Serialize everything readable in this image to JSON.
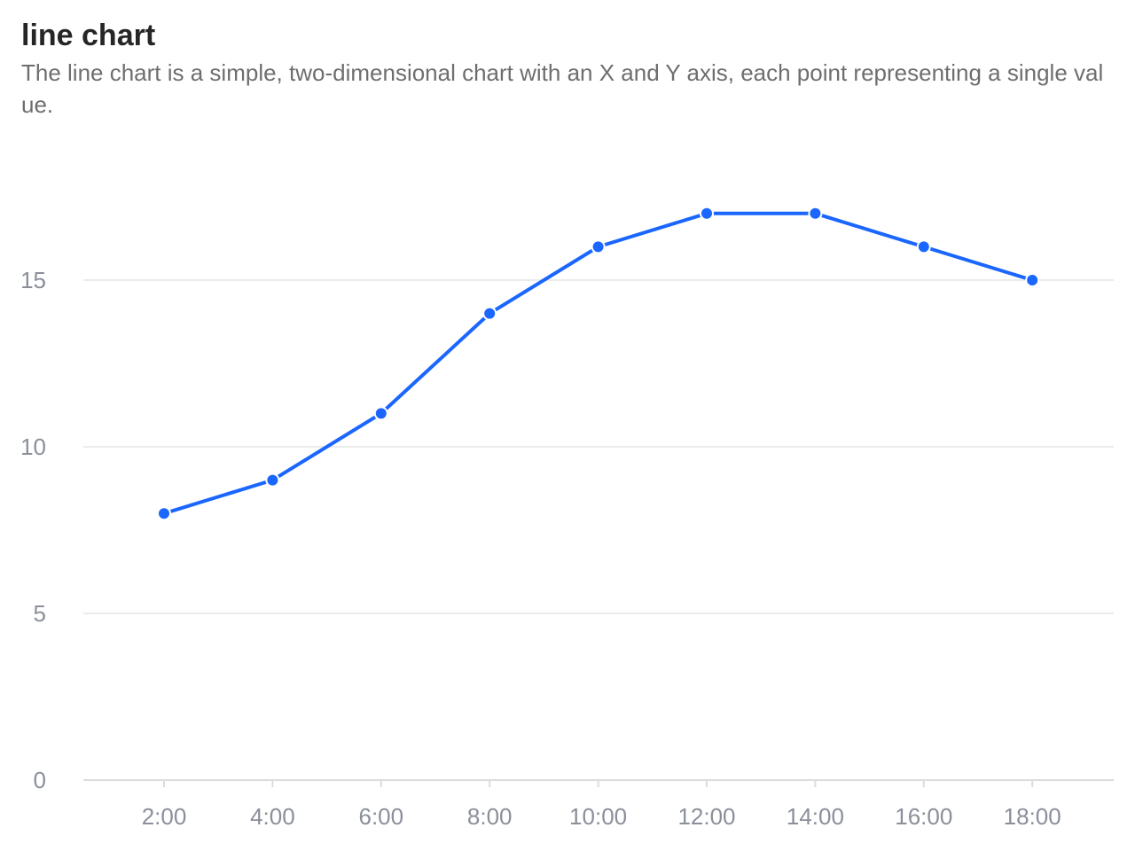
{
  "header": {
    "title": "line chart",
    "subtitle": "The line chart is a simple, two-dimensional chart with an X and Y axis, each point representing a single value."
  },
  "colors": {
    "line": "#1a66ff",
    "grid": "#ebebeb",
    "axis": "#dcdcdc",
    "tick_text": "#8a8f99"
  },
  "chart_data": {
    "type": "line",
    "title": "line chart",
    "subtitle": "The line chart is a simple, two-dimensional chart with an X and Y axis, each point representing a single value.",
    "xlabel": "",
    "ylabel": "",
    "categories": [
      "2:00",
      "4:00",
      "6:00",
      "8:00",
      "10:00",
      "12:00",
      "14:00",
      "16:00",
      "18:00"
    ],
    "series": [
      {
        "values": [
          8,
          9,
          11,
          14,
          16,
          17,
          17,
          16,
          15
        ]
      }
    ],
    "ylim": [
      0,
      17
    ],
    "yticks": [
      0,
      5,
      10,
      15
    ],
    "grid": true,
    "legend": "none",
    "markers": true
  }
}
